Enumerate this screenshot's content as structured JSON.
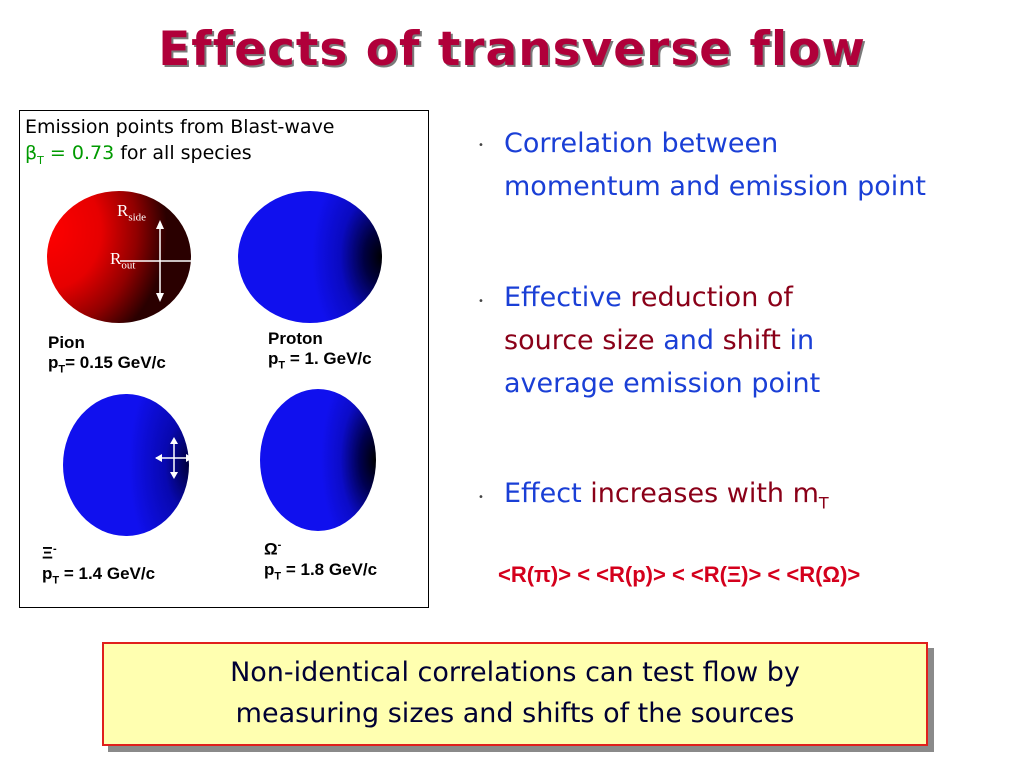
{
  "title": "Effects of transverse flow",
  "figure": {
    "caption_line1": "Emission points from Blast-wave",
    "caption_beta": "β",
    "caption_beta_sub": "T",
    "caption_beta_value": " = 0.73",
    "caption_rest": " for all species",
    "r_side": "R",
    "r_side_sub": "side",
    "r_out": "R",
    "r_out_sub": "out",
    "panels": [
      {
        "species": "Pion",
        "pt_prefix": "p",
        "pt_sub": "T",
        "pt_value": "= 0.15 GeV/c",
        "color": "#e00000"
      },
      {
        "species": "Proton",
        "pt_prefix": "p",
        "pt_sub": "T",
        "pt_value": " = 1. GeV/c",
        "color": "#1010ee"
      },
      {
        "species": "Ξ",
        "species_sup": "-",
        "pt_prefix": "p",
        "pt_sub": "T",
        "pt_value": " = 1.4 GeV/c",
        "color": "#1010ee"
      },
      {
        "species": "Ω",
        "species_sup": "-",
        "pt_prefix": "p",
        "pt_sub": "T",
        "pt_value": " = 1.8 GeV/c",
        "color": "#1010ee"
      }
    ]
  },
  "bullets": [
    {
      "marker": "•",
      "line1": "Correlation between",
      "line2": "momentum and emission point"
    },
    {
      "marker": "•",
      "w1": "Effective",
      "w2": " reduction of",
      "w3": "source size",
      "w4": " and ",
      "w5": "shift",
      "w6": " in",
      "line3": "average emission point"
    },
    {
      "marker": "•",
      "w1": "Effect",
      "w2": " increases with m",
      "w2_sub": "T"
    }
  ],
  "inequality": "<R(π)> < <R(p)> < <R(Ξ)> < <R(Ω)>",
  "note": {
    "line1": "Non-identical correlations can test flow by",
    "line2": "measuring sizes and shifts of the sources"
  },
  "colors": {
    "title": "#b0003a",
    "bullet_blue": "#1a3fd6",
    "bullet_darkred": "#8a0018",
    "inequality_red": "#d4001c",
    "note_bg": "#ffffb0",
    "note_border": "#e0201c"
  }
}
